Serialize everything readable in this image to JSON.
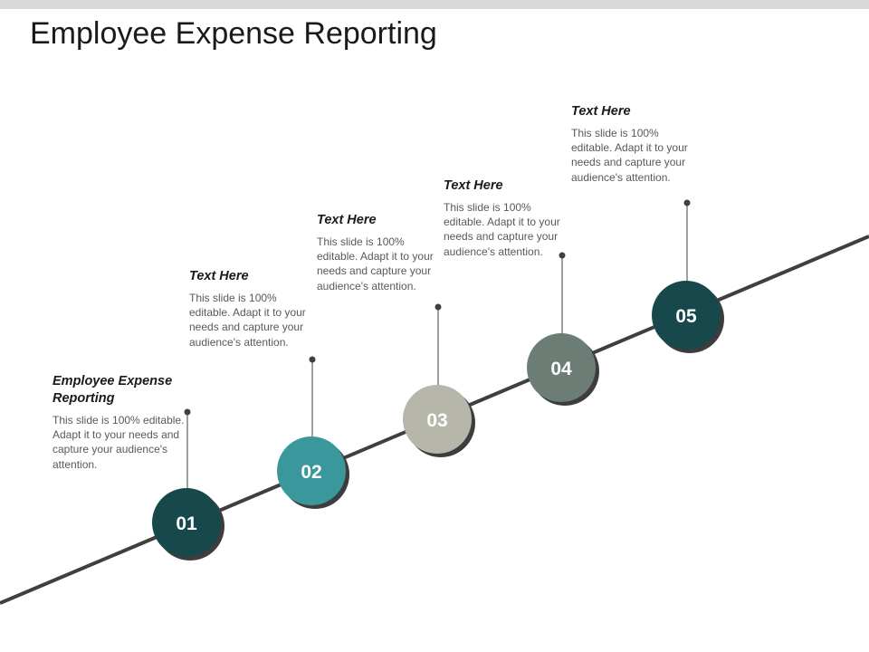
{
  "title": "Employee Expense Reporting",
  "colors": {
    "top_bar": "#d9d9d9",
    "diagonal_line": "#3f3f3f",
    "shadow": "#3d3d3d",
    "connector": "#404040"
  },
  "steps": [
    {
      "number": "01",
      "heading": "Employee Expense Reporting",
      "body": "This slide is 100% editable. Adapt it to your needs and capture your audience's attention.",
      "color": "#17484c"
    },
    {
      "number": "02",
      "heading": "Text Here",
      "body": "This slide is 100% editable. Adapt it to your needs and capture your audience's attention.",
      "color": "#3a989c"
    },
    {
      "number": "03",
      "heading": "Text Here",
      "body": "This slide is 100% editable. Adapt it to your needs and capture your audience's attention.",
      "color": "#b7b6ab"
    },
    {
      "number": "04",
      "heading": "Text Here",
      "body": "This slide is 100% editable. Adapt it to your needs and capture your audience's attention.",
      "color": "#6c7d76"
    },
    {
      "number": "05",
      "heading": "Text Here",
      "body": "This slide is 100% editable. Adapt it to your needs and capture your audience's attention.",
      "color": "#17484c"
    }
  ]
}
